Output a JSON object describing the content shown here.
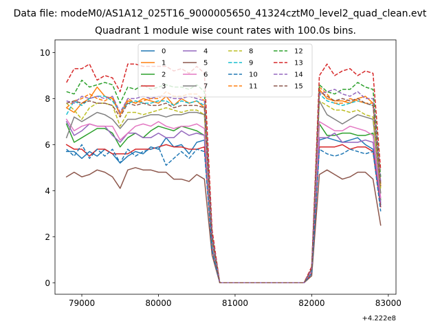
{
  "chart_data": {
    "type": "line",
    "suptitle": "Data file: modeM0/AS1A12_025T16_9000005650_41324cztM0_level2_quad_clean.evt",
    "title": "Quadrant 1 module wise count rates with 100.0s bins.",
    "xlabel": "",
    "ylabel": "",
    "x_offset_label": "+4.222e8",
    "xlim": [
      78650,
      83100
    ],
    "ylim": [
      -0.5,
      10.55
    ],
    "xticks": [
      79000,
      80000,
      81000,
      82000,
      83000
    ],
    "xtick_labels": [
      "79000",
      "80000",
      "81000",
      "82000",
      "83000"
    ],
    "yticks": [
      0,
      2,
      4,
      6,
      8,
      10
    ],
    "ytick_labels": [
      "0",
      "2",
      "4",
      "6",
      "8",
      "10"
    ],
    "legend_position": "upper-center",
    "x": [
      78800,
      78900,
      79000,
      79100,
      79200,
      79300,
      79400,
      79500,
      79600,
      79700,
      79800,
      79900,
      80000,
      80100,
      80200,
      80300,
      80400,
      80500,
      80600,
      80700,
      80800,
      80900,
      81000,
      81100,
      81200,
      81300,
      81400,
      81500,
      81600,
      81700,
      81800,
      81900,
      82000,
      82100,
      82200,
      82300,
      82400,
      82500,
      82600,
      82700,
      82800,
      82900
    ],
    "series": [
      {
        "name": "0",
        "color": "#1f77b4",
        "dash": "solid",
        "values": [
          5.7,
          5.7,
          5.4,
          5.7,
          5.5,
          5.8,
          5.6,
          5.2,
          5.5,
          5.7,
          5.6,
          5.9,
          5.8,
          6.3,
          5.9,
          6.0,
          5.6,
          6.1,
          6.2,
          1.5,
          0,
          0,
          0,
          0,
          0,
          0,
          0,
          0,
          0,
          0,
          0,
          0,
          0.4,
          6.2,
          6.3,
          6.2,
          6.1,
          6.2,
          6.3,
          6.0,
          5.8,
          3.4
        ]
      },
      {
        "name": "1",
        "color": "#ff7f0e",
        "dash": "solid",
        "values": [
          7.6,
          7.4,
          7.8,
          8.0,
          8.5,
          8.1,
          8.0,
          7.3,
          7.9,
          7.8,
          8.0,
          7.9,
          7.8,
          8.1,
          7.7,
          8.0,
          7.8,
          7.9,
          7.6,
          1.9,
          0,
          0,
          0,
          0,
          0,
          0,
          0,
          0,
          0,
          0,
          0,
          0,
          0.6,
          8.4,
          8.0,
          7.9,
          7.9,
          7.8,
          8.0,
          8.1,
          7.8,
          4.2
        ]
      },
      {
        "name": "2",
        "color": "#2ca02c",
        "dash": "solid",
        "values": [
          6.9,
          6.1,
          6.3,
          6.5,
          6.7,
          6.7,
          6.5,
          5.9,
          6.3,
          6.5,
          6.3,
          6.6,
          6.8,
          6.7,
          6.6,
          6.8,
          6.7,
          6.6,
          6.4,
          1.6,
          0,
          0,
          0,
          0,
          0,
          0,
          0,
          0,
          0,
          0,
          0,
          0,
          0.5,
          6.9,
          6.4,
          6.4,
          6.5,
          6.5,
          6.4,
          6.4,
          6.5,
          3.6
        ]
      },
      {
        "name": "3",
        "color": "#d62728",
        "dash": "solid",
        "values": [
          6.0,
          5.8,
          5.8,
          5.5,
          5.8,
          5.8,
          5.6,
          5.6,
          5.6,
          5.8,
          5.8,
          5.8,
          5.9,
          6.0,
          5.9,
          5.9,
          5.8,
          5.8,
          5.9,
          1.5,
          0,
          0,
          0,
          0,
          0,
          0,
          0,
          0,
          0,
          0,
          0,
          0,
          0.4,
          5.9,
          5.9,
          5.9,
          6.0,
          5.8,
          5.9,
          5.9,
          5.7,
          3.3
        ]
      },
      {
        "name": "4",
        "color": "#9467bd",
        "dash": "solid",
        "values": [
          7.0,
          6.4,
          6.6,
          6.9,
          6.8,
          6.8,
          6.4,
          6.1,
          6.5,
          6.5,
          6.3,
          6.3,
          6.5,
          6.3,
          6.3,
          6.6,
          6.4,
          6.5,
          6.4,
          1.6,
          0,
          0,
          0,
          0,
          0,
          0,
          0,
          0,
          0,
          0,
          0,
          0,
          0.5,
          6.3,
          6.3,
          6.5,
          6.1,
          6.1,
          6.1,
          6.2,
          6.1,
          3.5
        ]
      },
      {
        "name": "5",
        "color": "#8c564b",
        "dash": "solid",
        "values": [
          4.6,
          4.8,
          4.6,
          4.7,
          4.9,
          4.8,
          4.6,
          4.1,
          4.9,
          5.0,
          4.9,
          4.9,
          4.8,
          4.8,
          4.5,
          4.5,
          4.4,
          4.7,
          4.5,
          1.2,
          0,
          0,
          0,
          0,
          0,
          0,
          0,
          0,
          0,
          0,
          0,
          0,
          0.3,
          4.7,
          4.9,
          4.7,
          4.5,
          4.6,
          4.8,
          4.8,
          4.5,
          2.5
        ]
      },
      {
        "name": "6",
        "color": "#e377c2",
        "dash": "solid",
        "values": [
          7.1,
          6.6,
          6.8,
          6.9,
          6.8,
          6.8,
          6.8,
          6.2,
          6.5,
          6.8,
          6.9,
          6.8,
          7.0,
          6.8,
          6.7,
          6.8,
          6.8,
          6.9,
          6.7,
          1.7,
          0,
          0,
          0,
          0,
          0,
          0,
          0,
          0,
          0,
          0,
          0,
          0,
          0.5,
          7.0,
          6.8,
          6.6,
          6.6,
          6.8,
          6.7,
          6.6,
          6.4,
          3.7
        ]
      },
      {
        "name": "7",
        "color": "#7f7f7f",
        "dash": "solid",
        "values": [
          6.3,
          7.2,
          7.0,
          7.2,
          7.4,
          7.3,
          7.1,
          6.7,
          7.1,
          7.1,
          7.2,
          7.3,
          7.3,
          7.2,
          7.3,
          7.3,
          7.4,
          7.4,
          7.3,
          1.8,
          0,
          0,
          0,
          0,
          0,
          0,
          0,
          0,
          0,
          0,
          0,
          0,
          0.6,
          7.9,
          7.3,
          7.1,
          6.9,
          7.1,
          7.3,
          7.2,
          7.1,
          3.9
        ]
      },
      {
        "name": "8",
        "color": "#bcbd22",
        "dash": "dashed",
        "values": [
          7.8,
          7.5,
          7.1,
          7.6,
          7.8,
          7.8,
          7.7,
          6.8,
          7.4,
          7.4,
          7.3,
          7.4,
          7.5,
          7.6,
          7.5,
          7.4,
          7.5,
          7.5,
          7.3,
          1.8,
          0,
          0,
          0,
          0,
          0,
          0,
          0,
          0,
          0,
          0,
          0,
          0,
          0.6,
          7.9,
          7.7,
          7.5,
          7.5,
          7.4,
          7.5,
          7.3,
          7.2,
          4.1
        ]
      },
      {
        "name": "9",
        "color": "#17becf",
        "dash": "dashed",
        "values": [
          7.3,
          7.9,
          7.7,
          8.0,
          8.1,
          8.1,
          7.9,
          7.4,
          7.8,
          7.9,
          7.8,
          7.8,
          7.9,
          7.9,
          7.7,
          7.9,
          7.8,
          7.9,
          7.7,
          1.9,
          0,
          0,
          0,
          0,
          0,
          0,
          0,
          0,
          0,
          0,
          0,
          0,
          0.6,
          8.2,
          7.9,
          7.8,
          7.7,
          7.8,
          7.9,
          7.8,
          7.7,
          4.3
        ]
      },
      {
        "name": "10",
        "color": "#1f77b4",
        "dash": "dashed",
        "values": [
          5.8,
          5.5,
          6.0,
          5.4,
          5.8,
          5.5,
          5.8,
          5.2,
          5.8,
          5.5,
          5.7,
          5.8,
          5.9,
          5.1,
          5.4,
          5.7,
          5.4,
          5.8,
          5.7,
          1.4,
          0,
          0,
          0,
          0,
          0,
          0,
          0,
          0,
          0,
          0,
          0,
          0,
          0.4,
          5.8,
          5.6,
          5.5,
          5.6,
          5.8,
          5.7,
          5.6,
          5.7,
          3.1
        ]
      },
      {
        "name": "11",
        "color": "#ff7f0e",
        "dash": "dashed",
        "values": [
          7.6,
          7.9,
          8.0,
          8.2,
          8.0,
          7.9,
          8.1,
          7.3,
          8.0,
          7.8,
          7.9,
          8.0,
          8.0,
          8.3,
          8.1,
          8.1,
          8.2,
          8.2,
          7.9,
          2.0,
          0,
          0,
          0,
          0,
          0,
          0,
          0,
          0,
          0,
          0,
          0,
          0,
          0.6,
          8.5,
          8.2,
          7.8,
          7.8,
          8.0,
          7.9,
          7.8,
          7.8,
          4.3
        ]
      },
      {
        "name": "12",
        "color": "#2ca02c",
        "dash": "dashed",
        "values": [
          8.3,
          8.2,
          8.8,
          8.5,
          8.6,
          8.7,
          8.6,
          7.8,
          8.5,
          8.4,
          8.6,
          8.4,
          8.5,
          8.6,
          8.5,
          8.5,
          8.4,
          8.6,
          8.3,
          2.1,
          0,
          0,
          0,
          0,
          0,
          0,
          0,
          0,
          0,
          0,
          0,
          0,
          0.6,
          8.6,
          8.3,
          8.2,
          8.4,
          8.4,
          8.7,
          8.5,
          8.4,
          4.6
        ]
      },
      {
        "name": "13",
        "color": "#d62728",
        "dash": "dashed",
        "values": [
          8.7,
          9.3,
          9.3,
          9.5,
          8.8,
          9.0,
          8.9,
          8.3,
          9.5,
          9.5,
          9.4,
          9.4,
          9.4,
          9.4,
          9.2,
          9.3,
          9.1,
          9.4,
          9.1,
          2.3,
          0,
          0,
          0,
          0,
          0,
          0,
          0,
          0,
          0,
          0,
          0,
          0,
          0.7,
          9.0,
          9.5,
          9.0,
          9.2,
          9.3,
          9.0,
          9.2,
          9.1,
          4.9
        ]
      },
      {
        "name": "14",
        "color": "#9467bd",
        "dash": "dashed",
        "values": [
          7.9,
          7.8,
          8.1,
          8.0,
          8.1,
          8.0,
          8.1,
          7.4,
          8.0,
          8.0,
          8.1,
          8.0,
          8.1,
          8.1,
          8.0,
          8.0,
          8.1,
          8.0,
          7.9,
          2.0,
          0,
          0,
          0,
          0,
          0,
          0,
          0,
          0,
          0,
          0,
          0,
          0,
          0.6,
          8.2,
          8.3,
          8.4,
          8.2,
          8.1,
          8.3,
          8.0,
          8.0,
          4.4
        ]
      },
      {
        "name": "15",
        "color": "#8c564b",
        "dash": "dashed",
        "values": [
          7.8,
          7.9,
          7.8,
          7.9,
          7.8,
          7.8,
          7.7,
          7.2,
          7.8,
          7.7,
          7.8,
          7.7,
          7.7,
          7.8,
          7.6,
          7.7,
          7.7,
          7.7,
          7.6,
          1.9,
          0,
          0,
          0,
          0,
          0,
          0,
          0,
          0,
          0,
          0,
          0,
          0,
          0.6,
          8.3,
          8.1,
          7.9,
          8.0,
          7.9,
          8.0,
          7.8,
          7.7,
          4.2
        ]
      }
    ]
  }
}
